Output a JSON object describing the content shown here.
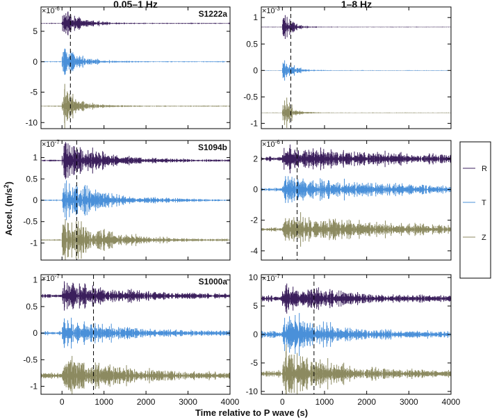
{
  "figure": {
    "col_titles": [
      "0.05–1 Hz",
      "1–8 Hz"
    ],
    "ylabel": "Accel. (m/s2)",
    "xlabel": "Time relative to P wave (s)",
    "legend": [
      {
        "label": "R",
        "color": "#3b1f5c"
      },
      {
        "label": "T",
        "color": "#4a90d9"
      },
      {
        "label": "Z",
        "color": "#8c8a60"
      }
    ]
  },
  "chart_data": [
    {
      "type": "line",
      "event": "S1222a",
      "band": "0.05–1 Hz",
      "scale_label": "×10",
      "scale_exp": "-6",
      "x_range": [
        -500,
        4000
      ],
      "ylim": [
        -11,
        9
      ],
      "yticks": [
        -10,
        -5,
        0,
        5
      ],
      "p_pick_s": 200,
      "x_ticks": [
        0,
        1000,
        2000,
        3000,
        4000
      ],
      "series": [
        {
          "name": "R",
          "offset": 6.3,
          "env_t0": 0,
          "decay_s": 350,
          "peak": 1.6,
          "baseline": 0.05
        },
        {
          "name": "T",
          "offset": 0,
          "env_t0": 0,
          "decay_s": 350,
          "peak": 2.0,
          "baseline": 0.05
        },
        {
          "name": "Z",
          "offset": -7.3,
          "env_t0": 0,
          "decay_s": 350,
          "peak": 1.8,
          "baseline": 0.05
        }
      ]
    },
    {
      "type": "line",
      "event": "S1222a",
      "band": "1–8 Hz",
      "scale_label": "×10",
      "scale_exp": "-3",
      "x_range": [
        -500,
        4000
      ],
      "ylim": [
        -1.1,
        1.2
      ],
      "yticks": [
        -1,
        -0.5,
        0,
        0.5,
        1
      ],
      "p_pick_s": 200,
      "x_ticks": [
        0,
        1000,
        2000,
        3000,
        4000
      ],
      "series": [
        {
          "name": "R",
          "offset": 0.82,
          "env_t0": 0,
          "decay_s": 200,
          "peak": 0.2,
          "baseline": 0.003
        },
        {
          "name": "T",
          "offset": 0,
          "env_t0": 0,
          "decay_s": 200,
          "peak": 0.22,
          "baseline": 0.003
        },
        {
          "name": "Z",
          "offset": -0.8,
          "env_t0": 0,
          "decay_s": 200,
          "peak": 0.2,
          "baseline": 0.003
        }
      ]
    },
    {
      "type": "line",
      "event": "S1094b",
      "band": "0.05–1 Hz",
      "scale_label": "×10",
      "scale_exp": "-7",
      "x_range": [
        -500,
        4000
      ],
      "ylim": [
        -1.4,
        1.4
      ],
      "yticks": [
        -1,
        -0.5,
        0,
        0.5,
        1
      ],
      "p_pick_s": 350,
      "x_ticks": [
        0,
        1000,
        2000,
        3000,
        4000
      ],
      "series": [
        {
          "name": "R",
          "offset": 0.93,
          "env_t0": 0,
          "decay_s": 900,
          "peak": 0.28,
          "baseline": 0.01
        },
        {
          "name": "T",
          "offset": 0,
          "env_t0": 0,
          "decay_s": 900,
          "peak": 0.3,
          "baseline": 0.01
        },
        {
          "name": "Z",
          "offset": -0.93,
          "env_t0": 0,
          "decay_s": 900,
          "peak": 0.33,
          "baseline": 0.01
        }
      ]
    },
    {
      "type": "line",
      "event": "S1094b",
      "band": "1–8 Hz",
      "scale_label": "×10",
      "scale_exp": "-6",
      "x_range": [
        -500,
        4000
      ],
      "ylim": [
        -4.6,
        3.2
      ],
      "yticks": [
        -4,
        -2,
        0,
        2
      ],
      "p_pick_s": 350,
      "x_ticks": [
        0,
        1000,
        2000,
        3000,
        4000
      ],
      "series": [
        {
          "name": "R",
          "offset": 2.0,
          "env_t0": 0,
          "decay_s": 2500,
          "peak": 0.4,
          "baseline": 0.08
        },
        {
          "name": "T",
          "offset": 0,
          "env_t0": 0,
          "decay_s": 2500,
          "peak": 0.42,
          "baseline": 0.06
        },
        {
          "name": "Z",
          "offset": -2.6,
          "env_t0": 0,
          "decay_s": 2500,
          "peak": 0.5,
          "baseline": 0.06
        }
      ]
    },
    {
      "type": "line",
      "event": "S1000a",
      "band": "0.05–1 Hz",
      "scale_label": "×10",
      "scale_exp": "-7",
      "x_range": [
        -500,
        4000
      ],
      "ylim": [
        -1.15,
        1.1
      ],
      "yticks": [
        -1,
        -0.5,
        0,
        0.5,
        1
      ],
      "p_pick_s": 750,
      "x_ticks": [
        0,
        1000,
        2000,
        3000,
        4000
      ],
      "series": [
        {
          "name": "R",
          "offset": 0.7,
          "env_t0": 0,
          "decay_s": 1200,
          "peak": 0.15,
          "baseline": 0.02
        },
        {
          "name": "T",
          "offset": 0,
          "env_t0": 0,
          "decay_s": 1200,
          "peak": 0.15,
          "baseline": 0.02
        },
        {
          "name": "Z",
          "offset": -0.8,
          "env_t0": 0,
          "decay_s": 1200,
          "peak": 0.2,
          "baseline": 0.03
        }
      ]
    },
    {
      "type": "line",
      "event": "S1000a",
      "band": "1–8 Hz",
      "scale_label": "×10",
      "scale_exp": "-7",
      "x_range": [
        -500,
        4000
      ],
      "ylim": [
        -10.5,
        10.5
      ],
      "yticks": [
        -10,
        -5,
        0,
        5,
        10
      ],
      "p_pick_s": 750,
      "x_ticks": [
        0,
        1000,
        2000,
        3000,
        4000
      ],
      "series": [
        {
          "name": "R",
          "offset": 6.3,
          "env_t0": 0,
          "decay_s": 1000,
          "peak": 1.5,
          "baseline": 0.3
        },
        {
          "name": "T",
          "offset": 0,
          "env_t0": 0,
          "decay_s": 1000,
          "peak": 1.8,
          "baseline": 0.3
        },
        {
          "name": "Z",
          "offset": -6.9,
          "env_t0": 0,
          "decay_s": 1000,
          "peak": 2.6,
          "baseline": 0.3
        }
      ]
    }
  ]
}
